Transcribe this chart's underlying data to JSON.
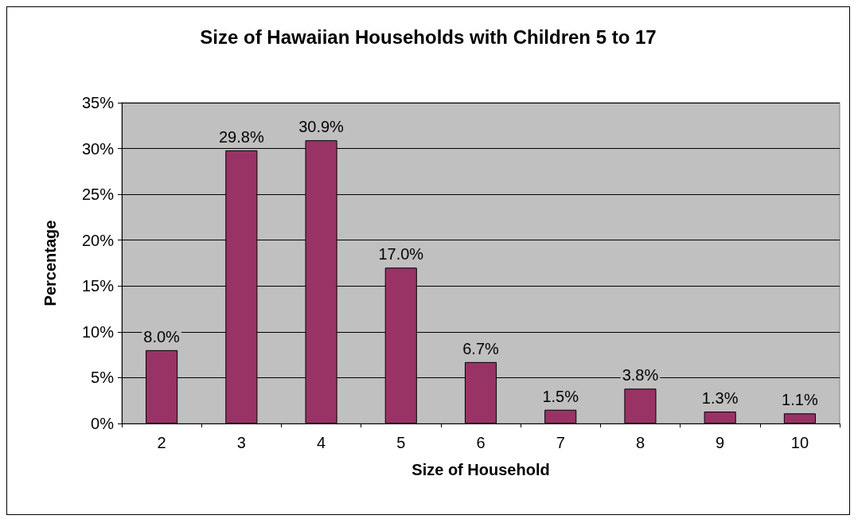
{
  "chart_data": {
    "type": "bar",
    "title": "Size of Hawaiian Households with Children 5 to 17",
    "xlabel": "Size of Household",
    "ylabel": "Percentage",
    "categories": [
      "2",
      "3",
      "4",
      "5",
      "6",
      "7",
      "8",
      "9",
      "10"
    ],
    "values": [
      8.0,
      29.8,
      30.9,
      17.0,
      6.7,
      1.5,
      3.8,
      1.3,
      1.1
    ],
    "value_labels": [
      "8.0%",
      "29.8%",
      "30.9%",
      "17.0%",
      "6.7%",
      "1.5%",
      "3.8%",
      "1.3%",
      "1.1%"
    ],
    "color": "#993366",
    "ylim": [
      0,
      35
    ],
    "yticks": [
      {
        "value": 0,
        "label": "0%"
      },
      {
        "value": 5,
        "label": "5%"
      },
      {
        "value": 10,
        "label": "10%"
      },
      {
        "value": 15,
        "label": "15%"
      },
      {
        "value": 20,
        "label": "20%"
      },
      {
        "value": 25,
        "label": "25%"
      },
      {
        "value": 30,
        "label": "30%"
      },
      {
        "value": 35,
        "label": "35%"
      }
    ],
    "grid": "y"
  }
}
